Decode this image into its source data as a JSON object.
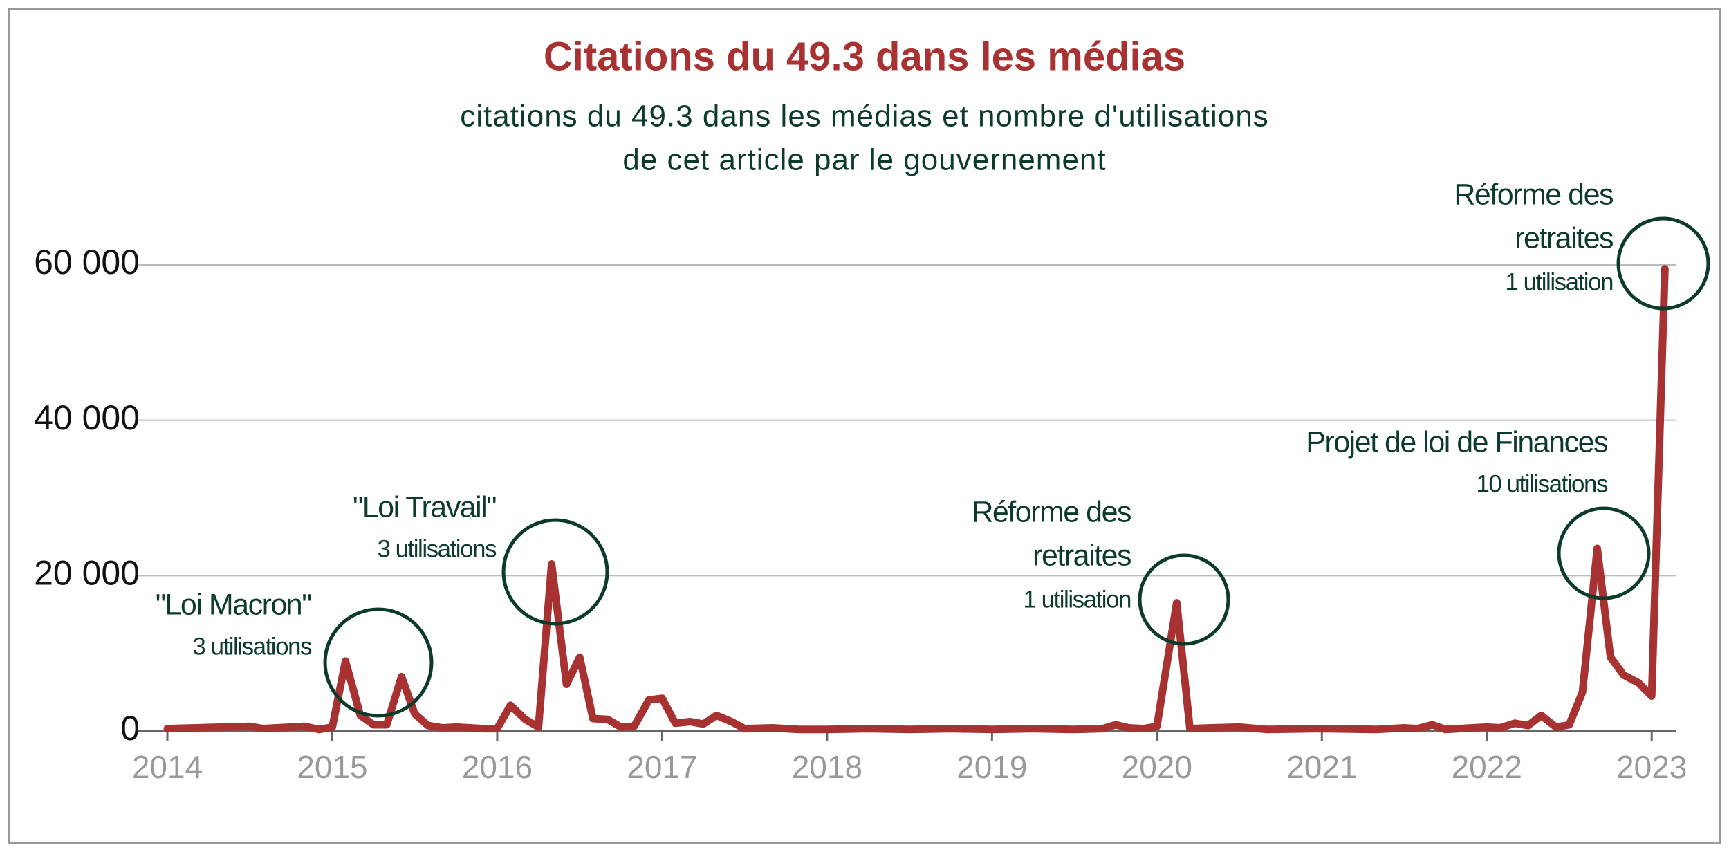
{
  "chart_data": {
    "type": "line",
    "title": "Citations du 49.3 dans les médias",
    "subtitle": [
      "citations du 49.3 dans les médias et nombre d'utilisations",
      "de cet article par le gouvernement"
    ],
    "x": [
      2014.0,
      2014.17,
      2014.33,
      2014.5,
      2014.58,
      2014.75,
      2014.83,
      2014.92,
      2015.0,
      2015.08,
      2015.17,
      2015.25,
      2015.33,
      2015.42,
      2015.5,
      2015.58,
      2015.67,
      2015.75,
      2015.92,
      2016.0,
      2016.08,
      2016.17,
      2016.25,
      2016.33,
      2016.42,
      2016.5,
      2016.58,
      2016.67,
      2016.75,
      2016.83,
      2016.92,
      2017.0,
      2017.08,
      2017.17,
      2017.25,
      2017.33,
      2017.42,
      2017.5,
      2017.67,
      2017.83,
      2018.0,
      2018.25,
      2018.5,
      2018.75,
      2019.0,
      2019.25,
      2019.5,
      2019.67,
      2019.75,
      2019.83,
      2019.92,
      2020.0,
      2020.12,
      2020.2,
      2020.33,
      2020.5,
      2020.67,
      2021.0,
      2021.33,
      2021.5,
      2021.58,
      2021.67,
      2021.75,
      2021.83,
      2022.0,
      2022.08,
      2022.17,
      2022.25,
      2022.33,
      2022.42,
      2022.5,
      2022.58,
      2022.67,
      2022.75,
      2022.83,
      2022.92,
      2023.0,
      2023.08
    ],
    "values": [
      300,
      400,
      500,
      600,
      300,
      500,
      600,
      200,
      500,
      9000,
      2000,
      800,
      800,
      7000,
      2200,
      700,
      400,
      500,
      300,
      300,
      3300,
      1500,
      500,
      21500,
      6000,
      9500,
      1600,
      1500,
      500,
      600,
      4000,
      4200,
      1000,
      1200,
      900,
      2000,
      1200,
      300,
      400,
      200,
      200,
      300,
      200,
      300,
      200,
      300,
      200,
      300,
      800,
      400,
      300,
      600,
      16500,
      300,
      400,
      500,
      200,
      300,
      200,
      400,
      300,
      800,
      200,
      300,
      500,
      400,
      1000,
      700,
      2000,
      500,
      800,
      5000,
      23500,
      9500,
      7200,
      6200,
      4500,
      59500
    ],
    "color": "#a83232",
    "xlim": [
      2014,
      2023.15
    ],
    "xticks": [
      2014,
      2015,
      2016,
      2017,
      2018,
      2019,
      2020,
      2021,
      2022,
      2023
    ],
    "ylim": [
      0,
      60000
    ],
    "yticks": [
      0,
      {
        "value": 20000,
        "label": "20 000"
      },
      {
        "value": 40000,
        "label": "40 000"
      },
      {
        "value": 60000,
        "label": "60 000"
      }
    ],
    "grid": true,
    "annotations": [
      {
        "lines": [
          "\"Loi Macron\"",
          "3 utilisations"
        ]
      },
      {
        "lines": [
          "\"Loi Travail\"",
          "3 utilisations"
        ]
      },
      {
        "lines": [
          "Réforme des",
          "retraites",
          "1 utilisation"
        ]
      },
      {
        "lines": [
          "Projet de loi de Finances",
          "10 utilisations"
        ]
      },
      {
        "lines": [
          "Réforme des",
          "retraites",
          "1 utilisation"
        ]
      }
    ]
  }
}
